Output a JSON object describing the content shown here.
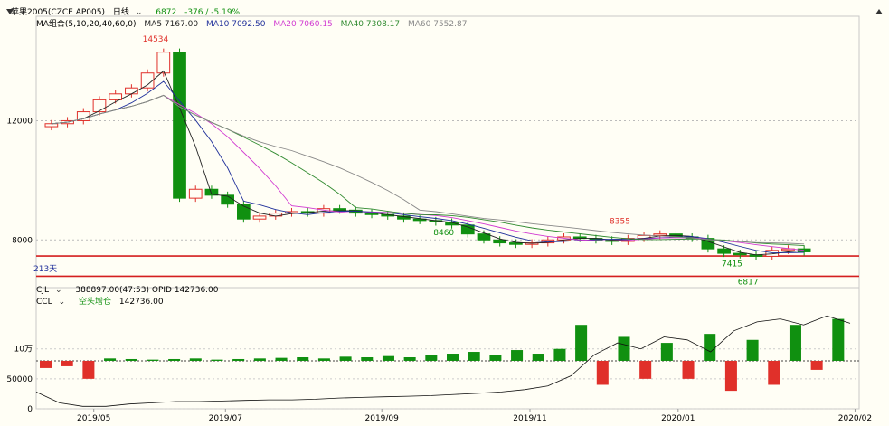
{
  "header": {
    "instrument": "苹果2005(CZCE AP005)",
    "period": "日线",
    "last_price": "6872",
    "change": "-376 / -5.19%",
    "colors": {
      "up": "#e0302a",
      "down": "#109010",
      "text": "#000000"
    }
  },
  "ma_legend": {
    "group_label": "MA组合(5,10,20,40,60,0)",
    "items": [
      {
        "label": "MA5 7167.00",
        "color": "#222222"
      },
      {
        "label": "MA10 7092.50",
        "color": "#1f2f9a"
      },
      {
        "label": "MA20 7060.15",
        "color": "#d13ad1"
      },
      {
        "label": "MA40 7308.17",
        "color": "#2f8a2f"
      },
      {
        "label": "MA60 7552.87",
        "color": "#888888"
      }
    ]
  },
  "sub_legend": {
    "cjl": "CJL",
    "cjl_values": "388897.00(47:53)  OPID 142736.00",
    "ccl": "CCL",
    "ccl_label": "空头增仓",
    "ccl_value": "142736.00"
  },
  "chart_data": [
    {
      "type": "candlestick",
      "title": "苹果2005(CZCE AP005)",
      "y_ticks": [
        "12000",
        "8000"
      ],
      "x_ticks": [
        "2019/05",
        "2019/07",
        "2019/09",
        "2019/11",
        "2020/01",
        "2020/02"
      ],
      "annotations": [
        "14534",
        "8460",
        "7415",
        "8355",
        "6817",
        "213天"
      ],
      "ylim": [
        6400,
        15200
      ],
      "support_resistance": [
        7460,
        6780
      ],
      "close_approx": [
        11900,
        12000,
        12300,
        12700,
        12900,
        13100,
        13600,
        14300,
        9400,
        9700,
        9500,
        9200,
        8700,
        8800,
        8900,
        8950,
        8900,
        9050,
        9000,
        8900,
        8850,
        8800,
        8700,
        8650,
        8600,
        8500,
        8200,
        8000,
        7900,
        7850,
        7900,
        8000,
        8100,
        8050,
        8000,
        7950,
        8050,
        8150,
        8200,
        8100,
        8050,
        7700,
        7550,
        7500,
        7450,
        7650,
        7700,
        7600
      ],
      "grid": true
    },
    {
      "type": "bar",
      "title": "CJL / CCL",
      "y_ticks": [
        "10万",
        "50000",
        "0"
      ],
      "x_ticks": [
        "2019/05",
        "2019/07",
        "2019/09",
        "2019/11",
        "2020/01",
        "2020/02"
      ],
      "bar_baseline": 80000,
      "ylim": [
        0,
        175000
      ],
      "bars_change": [
        -12000,
        -9000,
        -30000,
        4000,
        3000,
        2000,
        3000,
        4000,
        2000,
        3000,
        4000,
        5000,
        6000,
        4000,
        7000,
        6000,
        8000,
        6000,
        10000,
        12000,
        15000,
        10000,
        18000,
        12000,
        20000,
        60000,
        -40000,
        40000,
        -30000,
        30000,
        -30000,
        45000,
        -50000,
        35000,
        -40000,
        60000,
        -15000,
        70000
      ],
      "ccl_line_approx": [
        28000,
        10000,
        4000,
        4000,
        8000,
        10000,
        12000,
        12000,
        13000,
        14000,
        15000,
        15000,
        16000,
        18000,
        19000,
        20000,
        21000,
        22000,
        24000,
        26000,
        28000,
        32000,
        38000,
        55000,
        90000,
        110000,
        100000,
        120000,
        115000,
        95000,
        130000,
        145000,
        150000,
        140000,
        155000,
        142736
      ],
      "grid": true
    }
  ]
}
